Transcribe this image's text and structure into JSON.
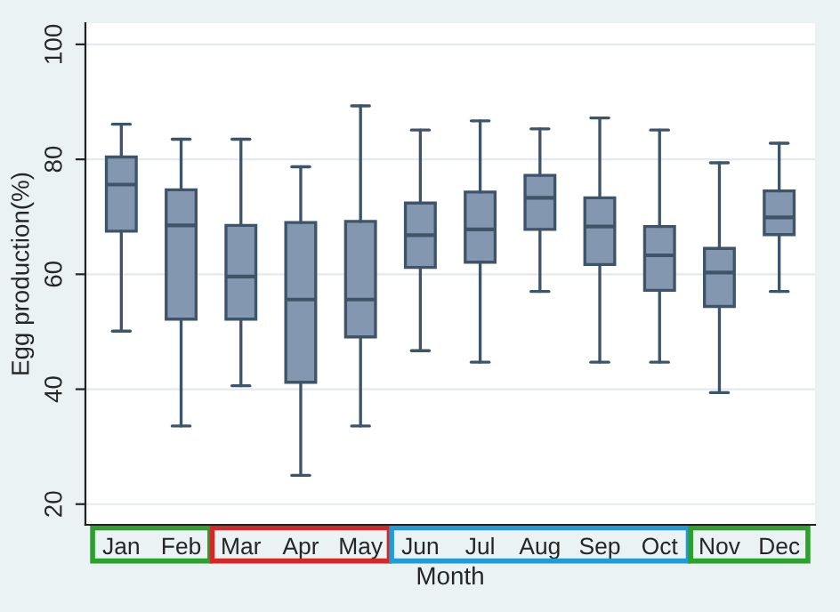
{
  "chart_data": {
    "type": "box",
    "xlabel": "Month",
    "ylabel": "Egg production(%)",
    "categories": [
      "Jan",
      "Feb",
      "Mar",
      "Apr",
      "May",
      "Jun",
      "Jul",
      "Aug",
      "Sep",
      "Oct",
      "Nov",
      "Dec"
    ],
    "color": "#8497b0",
    "boxes": [
      {
        "low": 50.1,
        "q1": 67.5,
        "median": 75.6,
        "q3": 80.4,
        "high": 86.1
      },
      {
        "low": 33.6,
        "q1": 52.2,
        "median": 68.5,
        "q3": 74.7,
        "high": 83.5
      },
      {
        "low": 40.6,
        "q1": 52.2,
        "median": 59.6,
        "q3": 68.5,
        "high": 83.5
      },
      {
        "low": 25.0,
        "q1": 41.2,
        "median": 55.6,
        "q3": 69.0,
        "high": 78.7
      },
      {
        "low": 33.6,
        "q1": 49.1,
        "median": 55.6,
        "q3": 69.2,
        "high": 89.3
      },
      {
        "low": 46.7,
        "q1": 61.2,
        "median": 66.8,
        "q3": 72.4,
        "high": 85.1
      },
      {
        "low": 44.7,
        "q1": 62.1,
        "median": 67.8,
        "q3": 74.3,
        "high": 86.7
      },
      {
        "low": 57.0,
        "q1": 67.8,
        "median": 73.3,
        "q3": 77.2,
        "high": 85.3
      },
      {
        "low": 44.7,
        "q1": 61.7,
        "median": 68.3,
        "q3": 73.3,
        "high": 87.2
      },
      {
        "low": 44.7,
        "q1": 57.2,
        "median": 63.3,
        "q3": 68.3,
        "high": 85.1
      },
      {
        "low": 39.4,
        "q1": 54.4,
        "median": 60.3,
        "q3": 64.5,
        "high": 79.4
      },
      {
        "low": 57.0,
        "q1": 66.9,
        "median": 69.9,
        "q3": 74.5,
        "high": 82.8
      }
    ],
    "ylim": [
      16.4,
      103.7
    ],
    "yticks": [
      20,
      40,
      60,
      80,
      100
    ],
    "grid": "y",
    "legend": false
  }
}
